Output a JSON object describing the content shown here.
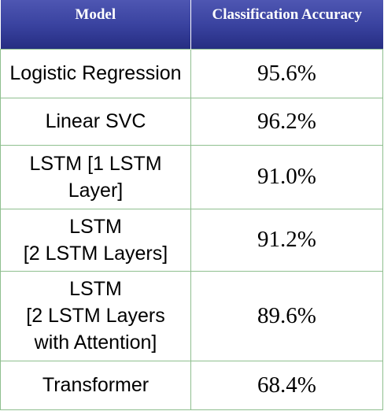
{
  "table": {
    "headers": {
      "model": "Model",
      "accuracy": "Classification Accuracy"
    },
    "rows": [
      {
        "model": [
          "Logistic Regression"
        ],
        "accuracy": "95.6%"
      },
      {
        "model": [
          "Linear SVC"
        ],
        "accuracy": "96.2%"
      },
      {
        "model": [
          "LSTM [1 LSTM",
          "Layer]"
        ],
        "accuracy": "91.0%"
      },
      {
        "model": [
          "LSTM",
          "[2 LSTM Layers]"
        ],
        "accuracy": "91.2%"
      },
      {
        "model": [
          "LSTM",
          "[2 LSTM Layers",
          "with Attention]"
        ],
        "accuracy": "89.6%"
      },
      {
        "model": [
          "Transformer"
        ],
        "accuracy": "68.4%"
      }
    ]
  },
  "colors": {
    "header_top": "#4e56b2",
    "header_bottom": "#262d82",
    "grid_line": "#8fbf8f"
  }
}
